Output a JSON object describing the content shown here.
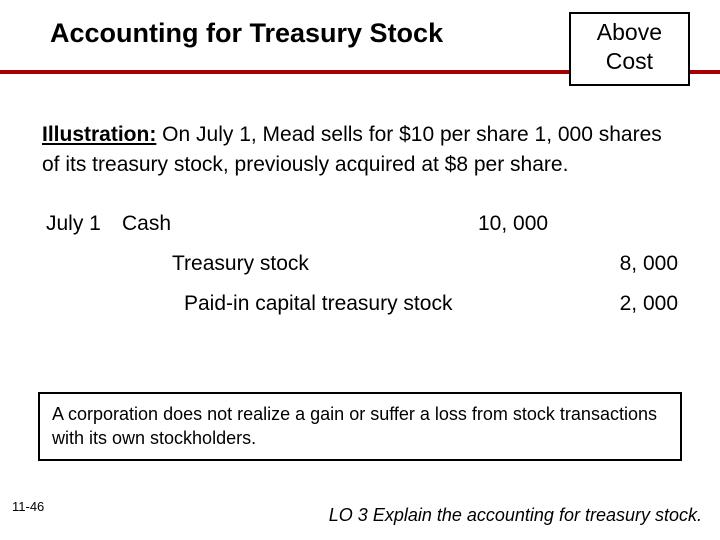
{
  "header": {
    "title": "Accounting for Treasury Stock",
    "badge_line1": "Above",
    "badge_line2": "Cost",
    "rule_color": "#a40000"
  },
  "illustration": {
    "label": "Illustration:",
    "text": "  On July 1, Mead sells for $10 per share 1, 000 shares of its treasury stock, previously acquired at $8 per share."
  },
  "journal": {
    "date": "July 1",
    "rows": [
      {
        "account": "Cash",
        "debit": "10, 000",
        "credit": "",
        "indent": 0
      },
      {
        "account": "Treasury stock",
        "debit": "",
        "credit": "8, 000",
        "indent": 1
      },
      {
        "account": "Paid-in capital treasury stock",
        "debit": "",
        "credit": "2, 000",
        "indent": 2
      }
    ]
  },
  "note": "A corporation does not realize a gain or suffer a loss from stock transactions with its own stockholders.",
  "footer": {
    "page": "11-46",
    "lo": "LO 3  Explain the accounting for treasury stock."
  },
  "colors": {
    "background": "#ffffff",
    "text": "#000000",
    "rule": "#a40000",
    "border": "#000000"
  },
  "fonts": {
    "title_size": 27,
    "body_size": 21,
    "note_size": 18,
    "foot_size": 13
  }
}
